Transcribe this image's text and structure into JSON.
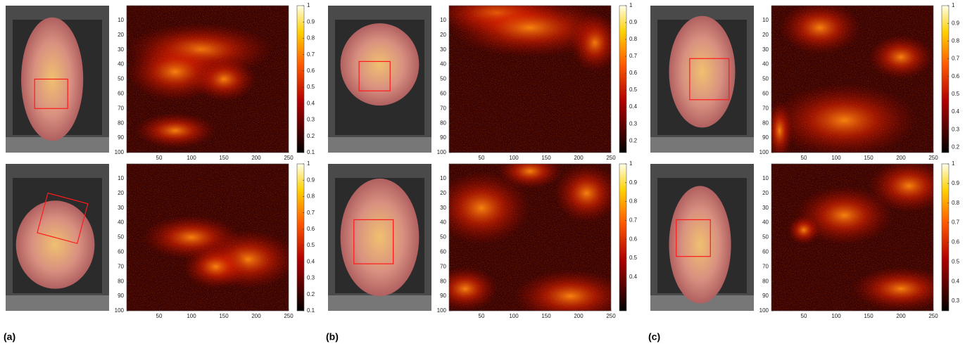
{
  "panels": [
    {
      "label": "(a)",
      "rows": [
        {
          "xlim": [
            0,
            250
          ],
          "ylim": [
            0,
            100
          ],
          "xticks": [
            50,
            100,
            150,
            200,
            250
          ],
          "yticks": [
            10,
            20,
            30,
            40,
            50,
            60,
            70,
            80,
            90,
            100
          ],
          "clim": [
            0.1,
            1
          ],
          "cticks": [
            0.1,
            0.2,
            0.3,
            0.4,
            0.5,
            0.6,
            0.7,
            0.8,
            0.9,
            1
          ]
        },
        {
          "xlim": [
            0,
            250
          ],
          "ylim": [
            0,
            100
          ],
          "xticks": [
            50,
            100,
            150,
            200,
            250
          ],
          "yticks": [
            10,
            20,
            30,
            40,
            50,
            60,
            70,
            80,
            90,
            100
          ],
          "clim": [
            0.1,
            1
          ],
          "cticks": [
            0.1,
            0.2,
            0.3,
            0.4,
            0.5,
            0.6,
            0.7,
            0.8,
            0.9,
            1
          ]
        }
      ]
    },
    {
      "label": "(b)",
      "rows": [
        {
          "xlim": [
            0,
            250
          ],
          "ylim": [
            0,
            100
          ],
          "xticks": [
            50,
            100,
            150,
            200,
            250
          ],
          "yticks": [
            10,
            20,
            30,
            40,
            50,
            60,
            70,
            80,
            90,
            100
          ],
          "clim": [
            0.13,
            1
          ],
          "cticks": [
            0.2,
            0.3,
            0.4,
            0.5,
            0.6,
            0.7,
            0.8,
            0.9,
            1
          ]
        },
        {
          "xlim": [
            0,
            250
          ],
          "ylim": [
            0,
            100
          ],
          "xticks": [
            50,
            100,
            150,
            200,
            250
          ],
          "yticks": [
            10,
            20,
            30,
            40,
            50,
            60,
            70,
            80,
            90,
            100
          ],
          "clim": [
            0.22,
            1
          ],
          "cticks": [
            0.4,
            0.5,
            0.6,
            0.7,
            0.8,
            0.9,
            1
          ]
        }
      ]
    },
    {
      "label": "(c)",
      "rows": [
        {
          "xlim": [
            0,
            250
          ],
          "ylim": [
            0,
            100
          ],
          "xticks": [
            50,
            100,
            150,
            200,
            250
          ],
          "yticks": [
            10,
            20,
            30,
            40,
            50,
            60,
            70,
            80,
            90,
            100
          ],
          "clim": [
            0.17,
            1
          ],
          "cticks": [
            0.2,
            0.3,
            0.4,
            0.5,
            0.6,
            0.7,
            0.8,
            0.9,
            1
          ]
        },
        {
          "xlim": [
            0,
            250
          ],
          "ylim": [
            0,
            100
          ],
          "xticks": [
            50,
            100,
            150,
            200,
            250
          ],
          "yticks": [
            10,
            20,
            30,
            40,
            50,
            60,
            70,
            80,
            90,
            100
          ],
          "clim": [
            0.25,
            1
          ],
          "cticks": [
            0.3,
            0.4,
            0.5,
            0.6,
            0.7,
            0.8,
            0.9,
            1
          ]
        }
      ]
    }
  ]
}
